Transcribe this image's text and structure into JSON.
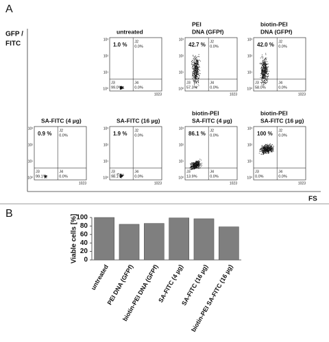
{
  "panel_a": {
    "label": "A",
    "y_label": [
      "GFP /",
      "FITC"
    ],
    "x_label": "FS",
    "plot_yticks": [
      "10³",
      "10²",
      "10¹",
      "10⁰"
    ],
    "plot_xtick": "1023",
    "plots": [
      {
        "title": [
          "untreated"
        ],
        "gate": "1.0 %",
        "q2": [
          "J2",
          "0.0%"
        ],
        "q3": [
          "J3",
          "99.0%"
        ],
        "q4": [
          "J4",
          "0.0%"
        ]
      },
      {
        "title": [
          "PEI",
          "DNA (GFPf)"
        ],
        "gate": "42.7 %",
        "q2": [
          "J2",
          "0.0%"
        ],
        "q3": [
          "J3",
          "57.3%"
        ],
        "q4": [
          "J4",
          "0.0%"
        ]
      },
      {
        "title": [
          "biotin-PEI",
          "DNA (GFPf)"
        ],
        "gate": "42.0 %",
        "q2": [
          "J2",
          "0.0%"
        ],
        "q3": [
          "J3",
          "58.0%"
        ],
        "q4": [
          "J4",
          "0.0%"
        ]
      },
      {
        "title": [
          "SA-FITC (4 µg)"
        ],
        "gate": "0.9 %",
        "q2": [
          "J2",
          "0.0%"
        ],
        "q3": [
          "J3",
          "99.1%"
        ],
        "q4": [
          "J4",
          "0.0%"
        ]
      },
      {
        "title": [
          "SA-FITC (16 µg)"
        ],
        "gate": "1.9 %",
        "q2": [
          "J2",
          "0.0%"
        ],
        "q3": [
          "J3",
          "98.1%"
        ],
        "q4": [
          "J4",
          "0.0%"
        ]
      },
      {
        "title": [
          "biotin-PEI",
          "SA-FITC (4 µg)"
        ],
        "gate": "86.1 %",
        "q2": [
          "J2",
          "0.0%"
        ],
        "q3": [
          "J3",
          "13.9%"
        ],
        "q4": [
          "J4",
          "0.0%"
        ]
      },
      {
        "title": [
          "biotin-PEI",
          "SA-FITC (16 µg)"
        ],
        "gate": "100 %",
        "q2": [
          "J2",
          "0.0%"
        ],
        "q3": [
          "J3",
          "0.0%"
        ],
        "q4": [
          "J4",
          "0.0%"
        ]
      }
    ]
  },
  "panel_b_label": "B",
  "chart_data": {
    "type": "bar",
    "y_label": "Viable cells [%]",
    "categories": [
      "untreated",
      "PEI DNA (GFPf)",
      "biotin-PEI DNA (GFPf)",
      "SA-FITC (4 µg)",
      "SA-FITC (16 µg)",
      "biotin-PEI SA-FITC (16 µg)"
    ],
    "values": [
      100,
      84,
      86,
      99,
      97,
      78
    ],
    "color": "#7f7f7f",
    "ylim": [
      0,
      100
    ],
    "yticks": [
      0,
      20,
      40,
      60,
      80,
      100
    ]
  }
}
